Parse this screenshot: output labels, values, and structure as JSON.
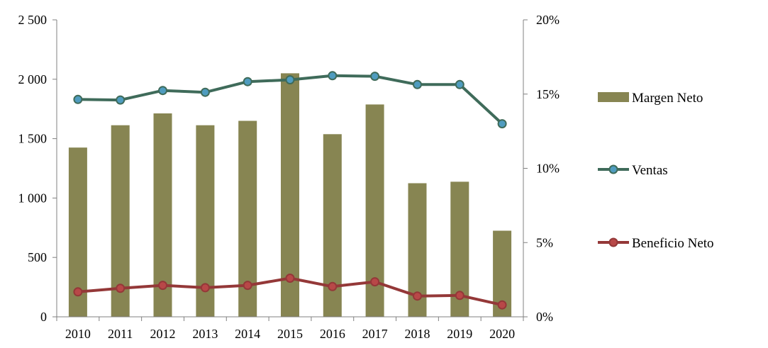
{
  "chart_data": {
    "type": "bar",
    "categories": [
      "2010",
      "2011",
      "2012",
      "2013",
      "2014",
      "2015",
      "2016",
      "2017",
      "2018",
      "2019",
      "2020"
    ],
    "y_left": {
      "min": 0,
      "max": 2500,
      "ticks": [
        0,
        500,
        1000,
        1500,
        2000,
        2500
      ],
      "tick_labels": [
        "0",
        "500",
        "1 000",
        "1 500",
        "2 000",
        "2 500"
      ]
    },
    "y_right": {
      "min": 0,
      "max": 0.2,
      "ticks": [
        0,
        0.05,
        0.1,
        0.15,
        0.2
      ],
      "tick_labels": [
        "0%",
        "5%",
        "10%",
        "15%",
        "20%"
      ]
    },
    "series": [
      {
        "name": "Margen Neto",
        "type": "bar",
        "axis": "right",
        "color": "#878552",
        "values": [
          0.114,
          0.129,
          0.137,
          0.129,
          0.132,
          0.164,
          0.123,
          0.143,
          0.09,
          0.091,
          0.058
        ]
      },
      {
        "name": "Ventas",
        "type": "line",
        "axis": "left",
        "color": "#3f6b5a",
        "marker_color": "#4f9cbf",
        "values": [
          1830,
          1825,
          1905,
          1890,
          1980,
          1995,
          2030,
          2025,
          1955,
          1955,
          1625
        ]
      },
      {
        "name": "Beneficio Neto",
        "type": "line",
        "axis": "left",
        "color": "#943838",
        "marker_color": "#b84848",
        "values": [
          210,
          240,
          265,
          245,
          265,
          325,
          255,
          295,
          175,
          180,
          100
        ]
      }
    ],
    "legend": {
      "placement": "right",
      "items": [
        "Margen Neto",
        "Ventas",
        "Beneficio Neto"
      ]
    },
    "grid": false
  }
}
